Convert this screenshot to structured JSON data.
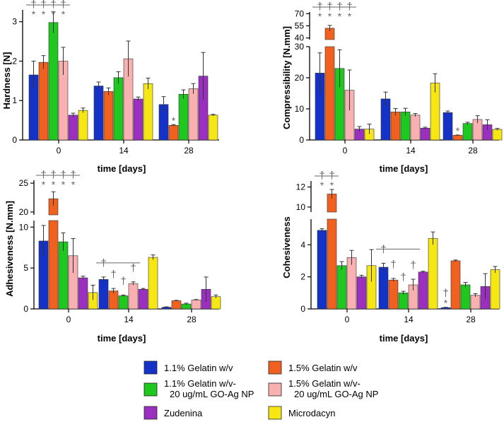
{
  "series": [
    {
      "name": "1.1% Gelatin w/v",
      "color": "#1432c8"
    },
    {
      "name": "1.5% Gelatin w/v",
      "color": "#f0601e"
    },
    {
      "name": "1.1% Gelatin w/v- 20 ug/mL GO-Ag NP",
      "lines": [
        "1.1% Gelatin w/v-",
        "20 ug/mL GO-Ag NP"
      ],
      "color": "#1ec81e"
    },
    {
      "name": "1.5% Gelatin w/v- 20 ug/mL GO-Ag NP",
      "lines": [
        "1.5% Gelatin w/v-",
        "20 ug/mL GO-Ag NP"
      ],
      "color": "#f8b0b0"
    },
    {
      "name": "Zudenina",
      "color": "#9b2fc0"
    },
    {
      "name": "Microdacyn",
      "color": "#f5e614"
    }
  ],
  "chart_data": [
    {
      "id": "hardness",
      "type": "bar",
      "ylabel": "Hardness [N]",
      "xlabel": "time [days]",
      "categories": [
        "0",
        "14",
        "28"
      ],
      "ylim": [
        0,
        3.3
      ],
      "yticks": [
        "0",
        "1",
        "2",
        "3"
      ],
      "values": [
        [
          1.65,
          1.97,
          2.98,
          2.0,
          0.63,
          0.75
        ],
        [
          1.37,
          1.23,
          1.58,
          2.06,
          1.04,
          1.43
        ],
        [
          0.9,
          0.37,
          1.16,
          1.3,
          1.62,
          0.63
        ]
      ],
      "errors": [
        [
          0.35,
          0.17,
          0.27,
          0.35,
          0.05,
          0.06
        ],
        [
          0.1,
          0.09,
          0.15,
          0.45,
          0.05,
          0.14
        ],
        [
          0.2,
          0.02,
          0.11,
          0.13,
          0.6,
          0.02
        ]
      ],
      "significance": [
        {
          "category": 0,
          "bars": [
            0,
            1,
            2,
            3
          ],
          "mark": "*",
          "dagger": "†"
        },
        {
          "category": 2,
          "bars": [
            1
          ],
          "mark": "*",
          "dagger": ""
        }
      ]
    },
    {
      "id": "compressibility",
      "type": "bar",
      "ylabel": "Compressibility [N.mm]",
      "xlabel": "time [days]",
      "categories": [
        "0",
        "14",
        "28"
      ],
      "broken_axis": true,
      "ylim_lower": [
        0,
        30
      ],
      "yticks_lower": [
        "0",
        "10",
        "20",
        "30"
      ],
      "ylim_upper": [
        38,
        72
      ],
      "yticks_upper": [
        "40",
        "55",
        "70"
      ],
      "values": [
        [
          21.5,
          52.0,
          23.0,
          16.0,
          3.5,
          3.5
        ],
        [
          13.2,
          9.0,
          9.0,
          8.0,
          3.8,
          18.3
        ],
        [
          8.8,
          1.5,
          5.3,
          6.6,
          4.9,
          3.4
        ]
      ],
      "errors": [
        [
          6.5,
          3.5,
          6.0,
          6.5,
          0.8,
          1.6
        ],
        [
          2.2,
          1.1,
          1.2,
          0.5,
          0.3,
          3.0
        ],
        [
          0.5,
          0.1,
          0.4,
          1.2,
          1.6,
          0.3
        ]
      ],
      "significance": [
        {
          "category": 0,
          "bars": [
            0,
            1,
            2,
            3
          ],
          "mark": "*",
          "dagger": "†"
        },
        {
          "category": 2,
          "bars": [
            1
          ],
          "mark": "*",
          "dagger": ""
        }
      ]
    },
    {
      "id": "adhesiveness",
      "type": "bar",
      "ylabel": "Adhesiveness [N.mm]",
      "xlabel": "time [days]",
      "categories": [
        "0",
        "14",
        "28"
      ],
      "broken_axis": true,
      "ylim_lower": [
        0,
        10.8
      ],
      "yticks_lower": [
        "0",
        "5",
        "10"
      ],
      "ylim_upper": [
        19.5,
        25.5
      ],
      "yticks_upper": [
        "20",
        "25"
      ],
      "values": [
        [
          8.3,
          22.3,
          8.2,
          6.5,
          3.8,
          2.0
        ],
        [
          3.6,
          2.2,
          1.6,
          3.1,
          2.4,
          6.3
        ],
        [
          0.2,
          1.0,
          0.6,
          1.1,
          2.4,
          1.5
        ]
      ],
      "errors": [
        [
          1.9,
          1.2,
          1.1,
          2.1,
          0.2,
          0.9
        ],
        [
          0.3,
          0.3,
          0.1,
          0.2,
          0.1,
          0.3
        ],
        [
          0.05,
          0.05,
          0.1,
          0.05,
          1.5,
          0.2
        ]
      ],
      "significance": [
        {
          "category": 0,
          "bars": [
            0,
            1,
            2,
            3
          ],
          "mark": "*",
          "dagger": "†"
        },
        {
          "category": 1,
          "bars": [
            0,
            1,
            2,
            3
          ],
          "mark": "",
          "dagger": "†"
        }
      ]
    },
    {
      "id": "cohesiveness",
      "type": "bar",
      "ylabel": "Cohesiveness",
      "xlabel": "time [days]",
      "categories": [
        "0",
        "14",
        "28"
      ],
      "broken_axis": true,
      "ylim_lower": [
        0,
        5.6
      ],
      "yticks_lower": [
        "0",
        "2",
        "4"
      ],
      "ylim_upper": [
        9.5,
        12.6
      ],
      "yticks_upper": [
        "10",
        "12"
      ],
      "values": [
        [
          4.9,
          11.3,
          2.7,
          3.2,
          2.0,
          2.7
        ],
        [
          2.6,
          1.8,
          1.0,
          1.5,
          2.3,
          4.4
        ],
        [
          0.08,
          3.0,
          1.5,
          0.85,
          1.4,
          2.45
        ]
      ],
      "errors": [
        [
          0.1,
          0.45,
          0.25,
          0.45,
          0.1,
          1.0
        ],
        [
          0.25,
          0.1,
          0.1,
          0.35,
          0.05,
          0.4
        ],
        [
          0.02,
          0.05,
          0.15,
          0.1,
          0.8,
          0.2
        ]
      ],
      "significance": [
        {
          "category": 0,
          "bars": [
            0,
            1
          ],
          "mark": "*",
          "dagger": "†"
        },
        {
          "category": 1,
          "bars": [
            0,
            1,
            2,
            3
          ],
          "mark": "",
          "dagger": "†"
        },
        {
          "category": 2,
          "bars": [
            0
          ],
          "mark": "*",
          "dagger": "†"
        }
      ]
    }
  ]
}
